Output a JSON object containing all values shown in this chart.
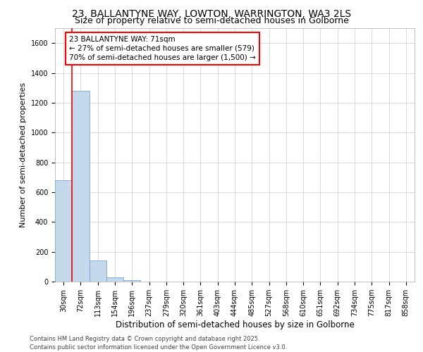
{
  "title_line1": "23, BALLANTYNE WAY, LOWTON, WARRINGTON, WA3 2LS",
  "title_line2": "Size of property relative to semi-detached houses in Golborne",
  "xlabel": "Distribution of semi-detached houses by size in Golborne",
  "ylabel": "Number of semi-detached properties",
  "bins": [
    "30sqm",
    "72sqm",
    "113sqm",
    "154sqm",
    "196sqm",
    "237sqm",
    "279sqm",
    "320sqm",
    "361sqm",
    "403sqm",
    "444sqm",
    "485sqm",
    "527sqm",
    "568sqm",
    "610sqm",
    "651sqm",
    "692sqm",
    "734sqm",
    "775sqm",
    "817sqm",
    "858sqm"
  ],
  "values": [
    680,
    1280,
    140,
    30,
    8,
    0,
    0,
    0,
    0,
    0,
    0,
    0,
    0,
    0,
    0,
    0,
    0,
    0,
    0,
    0,
    0
  ],
  "bar_color": "#c5d9ed",
  "bar_edge_color": "#6699cc",
  "ylim": [
    0,
    1700
  ],
  "yticks": [
    0,
    200,
    400,
    600,
    800,
    1000,
    1200,
    1400,
    1600
  ],
  "annotation_box_text": "23 BALLANTYNE WAY: 71sqm\n← 27% of semi-detached houses are smaller (579)\n70% of semi-detached houses are larger (1,500) →",
  "footnote_line1": "Contains HM Land Registry data © Crown copyright and database right 2025.",
  "footnote_line2": "Contains public sector information licensed under the Open Government Licence v3.0.",
  "background_color": "#ffffff",
  "grid_color": "#cccccc",
  "title_fontsize": 10,
  "subtitle_fontsize": 9,
  "xlabel_fontsize": 8.5,
  "ylabel_fontsize": 8,
  "tick_fontsize": 7,
  "annotation_fontsize": 7.5,
  "footnote_fontsize": 6
}
